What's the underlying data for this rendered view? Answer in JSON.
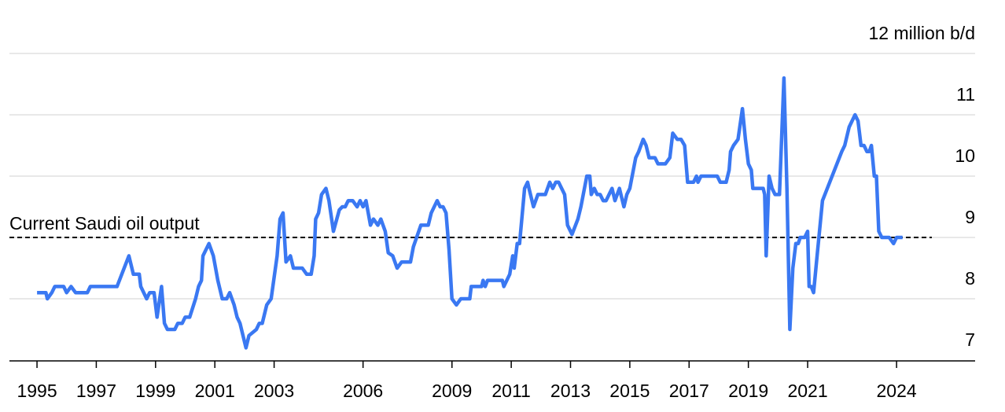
{
  "chart_data": {
    "type": "line",
    "x": [
      1995.0,
      1995.3,
      1995.35,
      1995.5,
      1995.6,
      1995.9,
      1996.0,
      1996.15,
      1996.3,
      1996.7,
      1996.8,
      1997.7,
      1998.1,
      1998.25,
      1998.45,
      1998.5,
      1998.7,
      1998.8,
      1998.95,
      1999.05,
      1999.2,
      1999.3,
      1999.4,
      1999.65,
      1999.75,
      1999.9,
      2000.0,
      2000.15,
      2000.35,
      2000.45,
      2000.55,
      2000.6,
      2000.8,
      2000.95,
      2001.1,
      2001.25,
      2001.4,
      2001.5,
      2001.65,
      2001.75,
      2001.85,
      2002.05,
      2002.15,
      2002.4,
      2002.5,
      2002.6,
      2002.75,
      2002.9,
      2003.1,
      2003.2,
      2003.3,
      2003.4,
      2003.55,
      2003.65,
      2003.95,
      2004.1,
      2004.25,
      2004.35,
      2004.4,
      2004.5,
      2004.6,
      2004.75,
      2004.85,
      2005.0,
      2005.2,
      2005.3,
      2005.4,
      2005.5,
      2005.65,
      2005.8,
      2005.9,
      2006.0,
      2006.1,
      2006.25,
      2006.35,
      2006.5,
      2006.6,
      2006.75,
      2006.85,
      2007.0,
      2007.15,
      2007.3,
      2007.6,
      2007.7,
      2007.95,
      2008.2,
      2008.3,
      2008.5,
      2008.6,
      2008.7,
      2008.8,
      2008.9,
      2009.0,
      2009.15,
      2009.3,
      2009.6,
      2009.65,
      2010.0,
      2010.05,
      2010.12,
      2010.2,
      2010.7,
      2010.75,
      2010.95,
      2011.05,
      2011.1,
      2011.2,
      2011.28,
      2011.45,
      2011.55,
      2011.6,
      2011.75,
      2011.9,
      2012.15,
      2012.3,
      2012.4,
      2012.5,
      2012.6,
      2012.7,
      2012.8,
      2012.9,
      2013.05,
      2013.25,
      2013.35,
      2013.55,
      2013.65,
      2013.7,
      2013.8,
      2013.9,
      2014.0,
      2014.1,
      2014.2,
      2014.3,
      2014.4,
      2014.5,
      2014.65,
      2014.8,
      2014.9,
      2015.0,
      2015.2,
      2015.3,
      2015.45,
      2015.55,
      2015.65,
      2015.85,
      2015.95,
      2016.2,
      2016.35,
      2016.45,
      2016.6,
      2016.73,
      2016.85,
      2016.95,
      2017.15,
      2017.25,
      2017.3,
      2017.4,
      2017.95,
      2018.05,
      2018.25,
      2018.35,
      2018.4,
      2018.5,
      2018.65,
      2018.8,
      2018.9,
      2019.0,
      2019.1,
      2019.15,
      2019.5,
      2019.55,
      2019.6,
      2019.7,
      2019.8,
      2019.9,
      2020.05,
      2020.2,
      2020.3,
      2020.4,
      2020.5,
      2020.6,
      2020.68,
      2020.75,
      2020.9,
      2021.0,
      2021.05,
      2021.12,
      2021.2,
      2021.3,
      2021.4,
      2021.5,
      2022.15,
      2022.25,
      2022.4,
      2022.6,
      2022.7,
      2022.8,
      2022.9,
      2023.0,
      2023.08,
      2023.15,
      2023.25,
      2023.32,
      2023.4,
      2023.5,
      2023.75,
      2023.9,
      2024.0,
      2024.2
    ],
    "values": [
      8.1,
      8.1,
      8.0,
      8.1,
      8.2,
      8.2,
      8.1,
      8.2,
      8.1,
      8.1,
      8.2,
      8.2,
      8.7,
      8.4,
      8.4,
      8.2,
      8.0,
      8.1,
      8.1,
      7.7,
      8.2,
      7.6,
      7.5,
      7.5,
      7.6,
      7.6,
      7.7,
      7.7,
      8.0,
      8.2,
      8.3,
      8.7,
      8.9,
      8.7,
      8.3,
      8.0,
      8.0,
      8.1,
      7.9,
      7.7,
      7.6,
      7.2,
      7.4,
      7.5,
      7.6,
      7.6,
      7.9,
      8.0,
      8.7,
      9.3,
      9.4,
      8.6,
      8.7,
      8.5,
      8.5,
      8.4,
      8.4,
      8.7,
      9.3,
      9.4,
      9.7,
      9.8,
      9.6,
      9.1,
      9.45,
      9.5,
      9.5,
      9.6,
      9.6,
      9.5,
      9.6,
      9.5,
      9.6,
      9.2,
      9.3,
      9.2,
      9.3,
      9.1,
      8.75,
      8.7,
      8.5,
      8.6,
      8.6,
      8.85,
      9.2,
      9.2,
      9.4,
      9.6,
      9.5,
      9.5,
      9.4,
      8.8,
      8.0,
      7.9,
      8.0,
      8.0,
      8.2,
      8.2,
      8.3,
      8.2,
      8.3,
      8.3,
      8.2,
      8.4,
      8.7,
      8.5,
      8.9,
      8.9,
      9.8,
      9.9,
      9.8,
      9.5,
      9.7,
      9.7,
      9.9,
      9.8,
      9.9,
      9.9,
      9.8,
      9.7,
      9.2,
      9.05,
      9.3,
      9.5,
      10.0,
      10.0,
      9.7,
      9.8,
      9.7,
      9.7,
      9.6,
      9.6,
      9.7,
      9.8,
      9.6,
      9.8,
      9.5,
      9.7,
      9.8,
      10.3,
      10.4,
      10.6,
      10.5,
      10.3,
      10.3,
      10.2,
      10.2,
      10.3,
      10.7,
      10.6,
      10.6,
      10.5,
      9.9,
      9.9,
      10.0,
      9.9,
      10.0,
      10.0,
      9.9,
      9.9,
      10.1,
      10.4,
      10.5,
      10.6,
      11.1,
      10.6,
      10.2,
      10.1,
      9.8,
      9.8,
      9.7,
      8.7,
      10.0,
      9.8,
      9.7,
      9.7,
      11.6,
      9.8,
      7.5,
      8.5,
      8.9,
      8.9,
      9.0,
      9.0,
      9.1,
      8.2,
      8.2,
      8.1,
      8.6,
      9.1,
      9.6,
      10.4,
      10.5,
      10.8,
      11.0,
      10.9,
      10.5,
      10.5,
      10.4,
      10.4,
      10.5,
      10.0,
      10.0,
      9.1,
      9.0,
      9.0,
      8.9,
      9.0,
      9.0
    ],
    "color": "#3a78f2",
    "xlim": [
      1994.07,
      2026.65
    ],
    "xticks": [
      1995,
      1997,
      1999,
      2001,
      2003,
      2006,
      2009,
      2011,
      2013,
      2015,
      2017,
      2019,
      2021,
      2024
    ],
    "ylim": [
      7,
      12
    ],
    "yticks": [
      7,
      8,
      9,
      10,
      11,
      {
        "value": 12,
        "label": "12 million b/d"
      }
    ],
    "grid": true,
    "reference_line": {
      "value": 9,
      "label": "Current Saudi oil output"
    }
  }
}
